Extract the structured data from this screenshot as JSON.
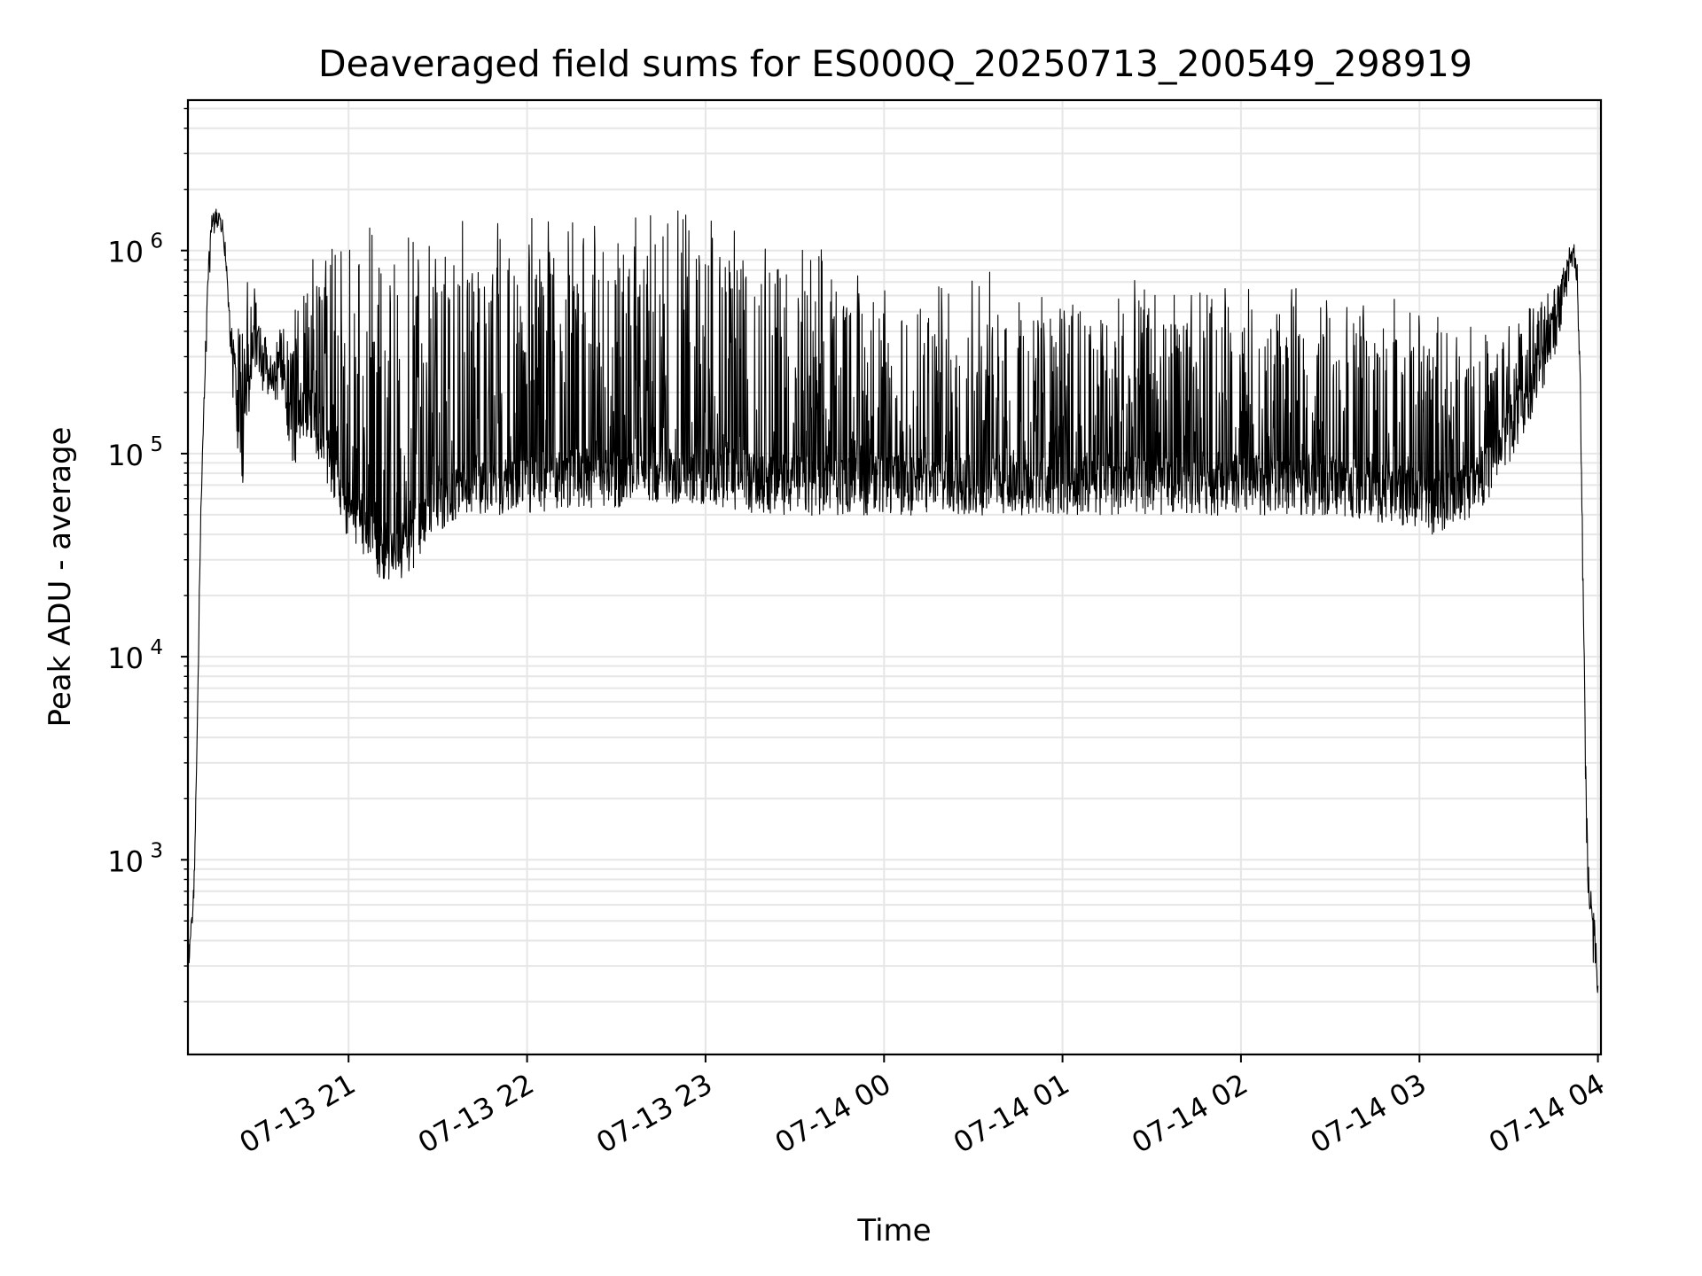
{
  "chart_data": {
    "type": "line",
    "title": "Deaveraged field sums for ES000Q_20250713_200549_298919",
    "xlabel": "Time",
    "ylabel": "Peak ADU - average",
    "y_scale": "log",
    "ylim": [
      110,
      5500000
    ],
    "xlim": [
      "2025-07-13 20:06",
      "2025-07-14 04:01"
    ],
    "grid": true,
    "line_color": "#000000",
    "grid_color": "#e6e6e6",
    "x_ticks": [
      {
        "value": "2025-07-13 21:00",
        "label": "07-13 21"
      },
      {
        "value": "2025-07-13 22:00",
        "label": "07-13 22"
      },
      {
        "value": "2025-07-13 23:00",
        "label": "07-13 23"
      },
      {
        "value": "2025-07-14 00:00",
        "label": "07-14 00"
      },
      {
        "value": "2025-07-14 01:00",
        "label": "07-14 01"
      },
      {
        "value": "2025-07-14 02:00",
        "label": "07-14 02"
      },
      {
        "value": "2025-07-14 03:00",
        "label": "07-14 03"
      },
      {
        "value": "2025-07-14 04:00",
        "label": "07-14 04"
      }
    ],
    "y_ticks": [
      {
        "value": 1000,
        "base": "10",
        "exp": "3"
      },
      {
        "value": 10000,
        "base": "10",
        "exp": "4"
      },
      {
        "value": 100000,
        "base": "10",
        "exp": "5"
      },
      {
        "value": 1000000,
        "base": "10",
        "exp": "6"
      }
    ],
    "series": [
      {
        "x": [
          "2025-07-13 20:06",
          "2025-07-13 20:07",
          "2025-07-13 20:08",
          "2025-07-13 20:09",
          "2025-07-13 20:10",
          "2025-07-13 20:11",
          "2025-07-13 20:12",
          "2025-07-13 20:13",
          "2025-07-13 20:14",
          "2025-07-13 20:16",
          "2025-07-13 20:18",
          "2025-07-13 20:19",
          "2025-07-13 20:20",
          "2025-07-13 20:22",
          "2025-07-13 20:24",
          "2025-07-13 20:26",
          "2025-07-13 20:28",
          "2025-07-13 20:30",
          "2025-07-13 20:32",
          "2025-07-13 20:34",
          "2025-07-13 20:35",
          "2025-07-13 20:36",
          "2025-07-13 20:38",
          "2025-07-13 20:40",
          "2025-07-13 20:42",
          "2025-07-13 20:44",
          "2025-07-13 20:46",
          "2025-07-13 20:48",
          "2025-07-13 20:50",
          "2025-07-13 20:52",
          "2025-07-13 20:54",
          "2025-07-13 20:56",
          "2025-07-13 20:58",
          "2025-07-13 21:00",
          "2025-07-13 21:05",
          "2025-07-13 21:10",
          "2025-07-13 21:15",
          "2025-07-13 21:20",
          "2025-07-13 21:25",
          "2025-07-13 21:30",
          "2025-07-13 21:35",
          "2025-07-13 21:40",
          "2025-07-13 21:45",
          "2025-07-13 21:50",
          "2025-07-13 21:55",
          "2025-07-13 22:00",
          "2025-07-13 22:10",
          "2025-07-13 22:20",
          "2025-07-13 22:30",
          "2025-07-13 22:40",
          "2025-07-13 22:50",
          "2025-07-13 23:00",
          "2025-07-13 23:10",
          "2025-07-13 23:20",
          "2025-07-13 23:30",
          "2025-07-13 23:40",
          "2025-07-13 23:50",
          "2025-07-14 00:00",
          "2025-07-14 00:15",
          "2025-07-14 00:30",
          "2025-07-14 00:45",
          "2025-07-14 01:00",
          "2025-07-14 01:15",
          "2025-07-14 01:30",
          "2025-07-14 01:45",
          "2025-07-14 02:00",
          "2025-07-14 02:15",
          "2025-07-14 02:30",
          "2025-07-14 02:45",
          "2025-07-14 03:00",
          "2025-07-14 03:05",
          "2025-07-14 03:10",
          "2025-07-14 03:15",
          "2025-07-14 03:20",
          "2025-07-14 03:25",
          "2025-07-14 03:30",
          "2025-07-14 03:35",
          "2025-07-14 03:40",
          "2025-07-14 03:42",
          "2025-07-14 03:44",
          "2025-07-14 03:46",
          "2025-07-14 03:48",
          "2025-07-14 03:49",
          "2025-07-14 03:50",
          "2025-07-14 03:51",
          "2025-07-14 03:52",
          "2025-07-14 03:53",
          "2025-07-14 03:54",
          "2025-07-14 03:55",
          "2025-07-14 03:56",
          "2025-07-14 03:57",
          "2025-07-14 03:58",
          "2025-07-14 03:59",
          "2025-07-14 04:00"
        ],
        "baseline": [
          320,
          420,
          700,
          3000,
          30000,
          120000,
          350000,
          900000,
          1300000,
          1450000,
          1200000,
          800000,
          350000,
          200000,
          80000,
          150000,
          400000,
          300000,
          250000,
          200000,
          200000,
          250000,
          230000,
          140000,
          120000,
          150000,
          170000,
          160000,
          120000,
          100000,
          90000,
          80000,
          60000,
          55000,
          45000,
          35000,
          30000,
          35000,
          45000,
          55000,
          60000,
          70000,
          70000,
          70000,
          70000,
          70000,
          75000,
          75000,
          75000,
          80000,
          80000,
          80000,
          75000,
          70000,
          70000,
          70000,
          70000,
          70000,
          70000,
          70000,
          70000,
          70000,
          70000,
          70000,
          70000,
          70000,
          70000,
          70000,
          65000,
          60000,
          55000,
          60000,
          65000,
          75000,
          90000,
          120000,
          170000,
          260000,
          300000,
          370000,
          450000,
          600000,
          700000,
          800000,
          900000,
          950000,
          700000,
          200000,
          20000,
          2000,
          600,
          450,
          400,
          200
        ],
        "upper": [
          320,
          420,
          700,
          3000,
          30000,
          120000,
          400000,
          1000000,
          1500000,
          1500000,
          1300000,
          900000,
          450000,
          400000,
          700000,
          700000,
          700000,
          500000,
          400000,
          300000,
          300000,
          400000,
          500000,
          500000,
          700000,
          800000,
          900000,
          1000000,
          1100000,
          1200000,
          1300000,
          1300000,
          1300000,
          1300000,
          1300000,
          1300000,
          1300000,
          1300000,
          1400000,
          1400000,
          1400000,
          1400000,
          1500000,
          1500000,
          1500000,
          1500000,
          1500000,
          1500000,
          1500000,
          1600000,
          1600000,
          1700000,
          1500000,
          1300000,
          1200000,
          1000000,
          900000,
          800000,
          800000,
          800000,
          800000,
          750000,
          750000,
          700000,
          700000,
          700000,
          650000,
          650000,
          600000,
          550000,
          500000,
          480000,
          470000,
          460000,
          470000,
          500000,
          520000,
          550000,
          600000,
          650000,
          700000,
          800000,
          900000,
          950000,
          950000,
          980000,
          800000,
          300000,
          30000,
          2500,
          700,
          550,
          500,
          250
        ]
      }
    ]
  }
}
